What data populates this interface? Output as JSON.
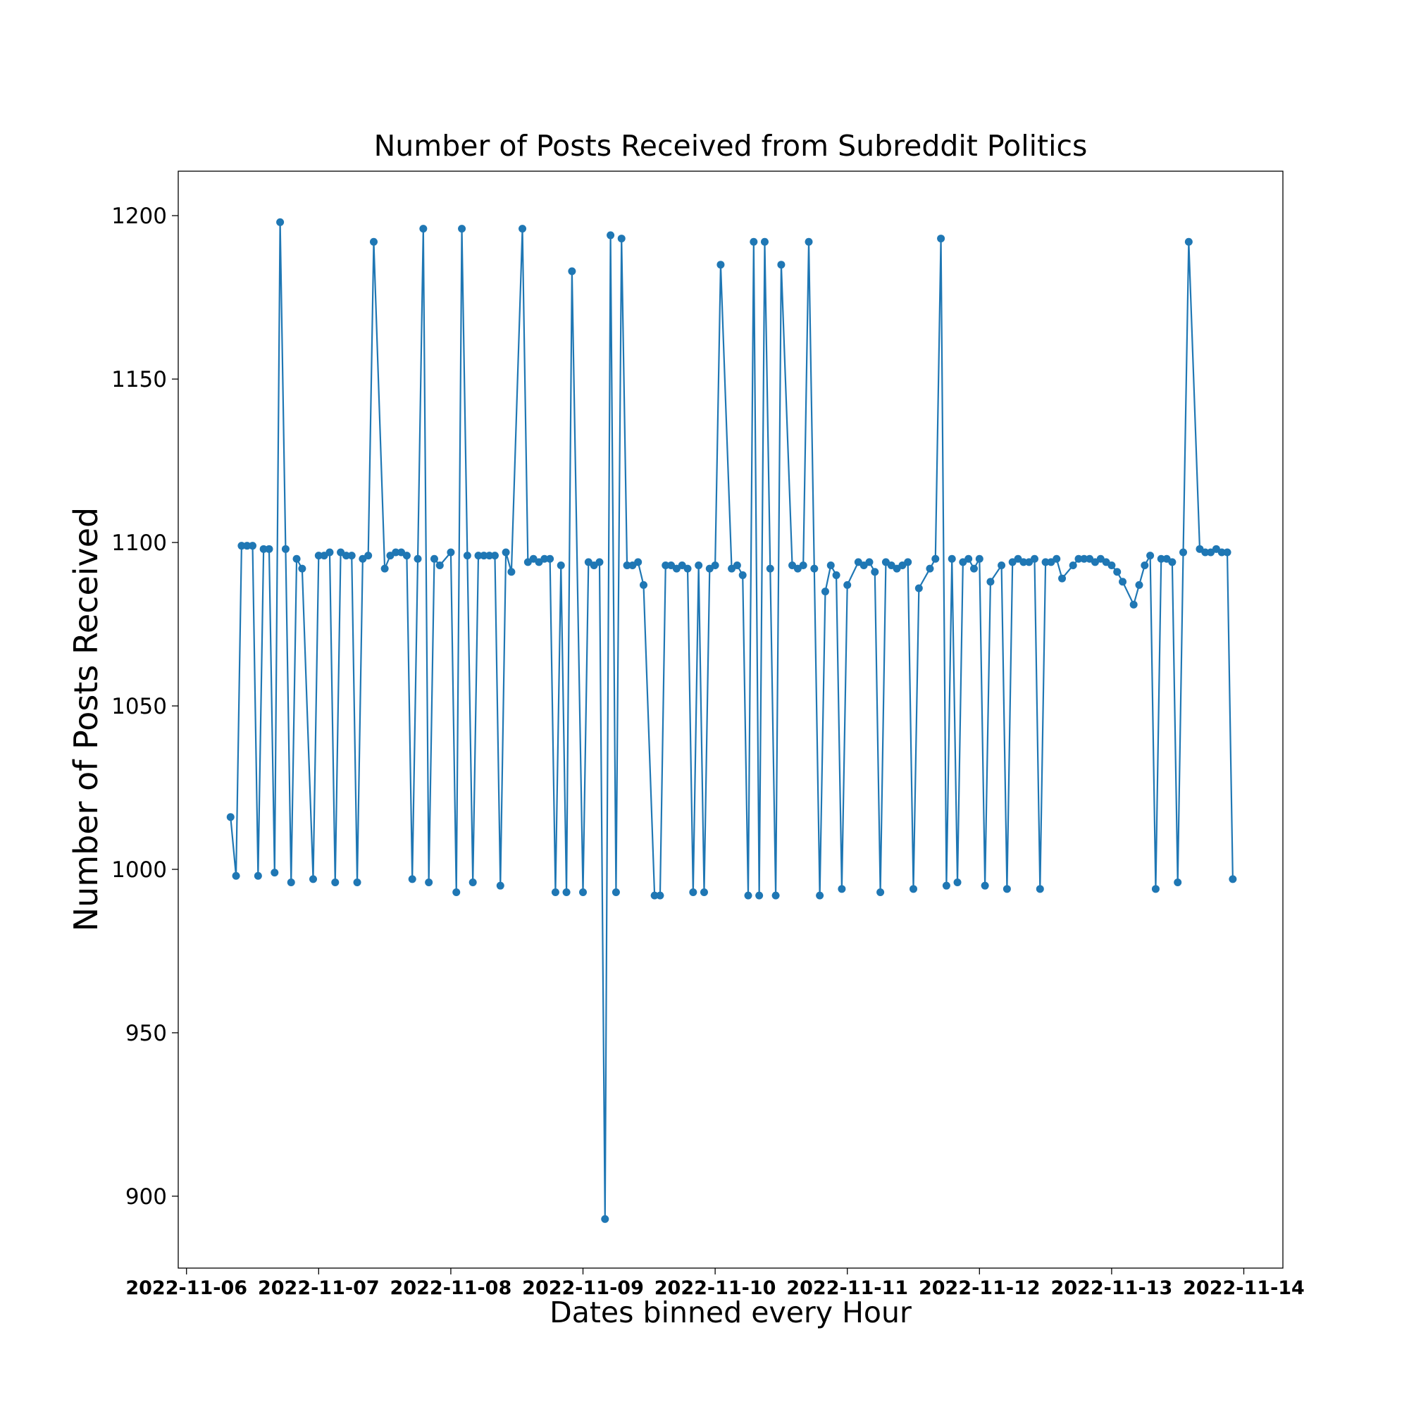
{
  "chart_data": {
    "type": "line",
    "title": "Number of Posts Received from Subreddit Politics",
    "xlabel": "Dates binned every Hour",
    "ylabel": "Number of Posts Received",
    "color": "#1f77b4",
    "x": [
      "2022-11-06 08:00",
      "2022-11-06 09:00",
      "2022-11-06 10:00",
      "2022-11-06 11:00",
      "2022-11-06 12:00",
      "2022-11-06 13:00",
      "2022-11-06 14:00",
      "2022-11-06 15:00",
      "2022-11-06 16:00",
      "2022-11-06 17:00",
      "2022-11-06 18:00",
      "2022-11-06 19:00",
      "2022-11-06 20:00",
      "2022-11-06 21:00",
      "2022-11-06 23:00",
      "2022-11-07 00:00",
      "2022-11-07 01:00",
      "2022-11-07 02:00",
      "2022-11-07 03:00",
      "2022-11-07 04:00",
      "2022-11-07 05:00",
      "2022-11-07 06:00",
      "2022-11-07 07:00",
      "2022-11-07 08:00",
      "2022-11-07 09:00",
      "2022-11-07 10:00",
      "2022-11-07 12:00",
      "2022-11-07 13:00",
      "2022-11-07 14:00",
      "2022-11-07 15:00",
      "2022-11-07 16:00",
      "2022-11-07 17:00",
      "2022-11-07 18:00",
      "2022-11-07 19:00",
      "2022-11-07 20:00",
      "2022-11-07 21:00",
      "2022-11-07 22:00",
      "2022-11-08 00:00",
      "2022-11-08 01:00",
      "2022-11-08 02:00",
      "2022-11-08 03:00",
      "2022-11-08 04:00",
      "2022-11-08 05:00",
      "2022-11-08 06:00",
      "2022-11-08 07:00",
      "2022-11-08 08:00",
      "2022-11-08 09:00",
      "2022-11-08 10:00",
      "2022-11-08 11:00",
      "2022-11-08 13:00",
      "2022-11-08 14:00",
      "2022-11-08 15:00",
      "2022-11-08 16:00",
      "2022-11-08 17:00",
      "2022-11-08 18:00",
      "2022-11-08 19:00",
      "2022-11-08 20:00",
      "2022-11-08 21:00",
      "2022-11-08 22:00",
      "2022-11-09 00:00",
      "2022-11-09 01:00",
      "2022-11-09 02:00",
      "2022-11-09 03:00",
      "2022-11-09 04:00",
      "2022-11-09 05:00",
      "2022-11-09 06:00",
      "2022-11-09 07:00",
      "2022-11-09 08:00",
      "2022-11-09 09:00",
      "2022-11-09 10:00",
      "2022-11-09 11:00",
      "2022-11-09 13:00",
      "2022-11-09 14:00",
      "2022-11-09 15:00",
      "2022-11-09 16:00",
      "2022-11-09 17:00",
      "2022-11-09 18:00",
      "2022-11-09 19:00",
      "2022-11-09 20:00",
      "2022-11-09 21:00",
      "2022-11-09 22:00",
      "2022-11-09 23:00",
      "2022-11-10 00:00",
      "2022-11-10 01:00",
      "2022-11-10 03:00",
      "2022-11-10 04:00",
      "2022-11-10 05:00",
      "2022-11-10 06:00",
      "2022-11-10 07:00",
      "2022-11-10 08:00",
      "2022-11-10 09:00",
      "2022-11-10 10:00",
      "2022-11-10 11:00",
      "2022-11-10 12:00",
      "2022-11-10 14:00",
      "2022-11-10 15:00",
      "2022-11-10 16:00",
      "2022-11-10 17:00",
      "2022-11-10 18:00",
      "2022-11-10 19:00",
      "2022-11-10 20:00",
      "2022-11-10 21:00",
      "2022-11-10 22:00",
      "2022-11-10 23:00",
      "2022-11-11 00:00",
      "2022-11-11 02:00",
      "2022-11-11 03:00",
      "2022-11-11 04:00",
      "2022-11-11 05:00",
      "2022-11-11 06:00",
      "2022-11-11 07:00",
      "2022-11-11 08:00",
      "2022-11-11 09:00",
      "2022-11-11 10:00",
      "2022-11-11 11:00",
      "2022-11-11 12:00",
      "2022-11-11 13:00",
      "2022-11-11 15:00",
      "2022-11-11 16:00",
      "2022-11-11 17:00",
      "2022-11-11 18:00",
      "2022-11-11 19:00",
      "2022-11-11 20:00",
      "2022-11-11 21:00",
      "2022-11-11 22:00",
      "2022-11-11 23:00",
      "2022-11-12 00:00",
      "2022-11-12 01:00",
      "2022-11-12 02:00",
      "2022-11-12 04:00",
      "2022-11-12 05:00",
      "2022-11-12 06:00",
      "2022-11-12 07:00",
      "2022-11-12 08:00",
      "2022-11-12 09:00",
      "2022-11-12 10:00",
      "2022-11-12 11:00",
      "2022-11-12 12:00",
      "2022-11-12 13:00",
      "2022-11-12 14:00",
      "2022-11-12 15:00",
      "2022-11-12 17:00",
      "2022-11-12 18:00",
      "2022-11-12 19:00",
      "2022-11-12 20:00",
      "2022-11-12 21:00",
      "2022-11-12 22:00",
      "2022-11-12 23:00",
      "2022-11-13 00:00",
      "2022-11-13 01:00",
      "2022-11-13 02:00",
      "2022-11-13 04:00",
      "2022-11-13 05:00",
      "2022-11-13 06:00",
      "2022-11-13 07:00",
      "2022-11-13 08:00",
      "2022-11-13 09:00",
      "2022-11-13 10:00",
      "2022-11-13 11:00",
      "2022-11-13 12:00",
      "2022-11-13 13:00",
      "2022-11-13 14:00",
      "2022-11-13 16:00",
      "2022-11-13 17:00",
      "2022-11-13 18:00",
      "2022-11-13 19:00",
      "2022-11-13 20:00",
      "2022-11-13 21:00",
      "2022-11-13 22:00"
    ],
    "values": [
      1016,
      998,
      1099,
      1099,
      1099,
      998,
      1098,
      1098,
      999,
      1198,
      1098,
      996,
      1095,
      1092,
      997,
      1096,
      1096,
      1097,
      996,
      1097,
      1096,
      1096,
      996,
      1095,
      1096,
      1192,
      1092,
      1096,
      1097,
      1097,
      1096,
      997,
      1095,
      1196,
      996,
      1095,
      1093,
      1097,
      993,
      1196,
      1096,
      996,
      1096,
      1096,
      1096,
      1096,
      995,
      1097,
      1091,
      1196,
      1094,
      1095,
      1094,
      1095,
      1095,
      993,
      1093,
      993,
      1183,
      993,
      1094,
      1093,
      1094,
      893,
      1194,
      993,
      1193,
      1093,
      1093,
      1094,
      1087,
      992,
      992,
      1093,
      1093,
      1092,
      1093,
      1092,
      993,
      1093,
      993,
      1092,
      1093,
      1185,
      1092,
      1093,
      1090,
      992,
      1192,
      992,
      1192,
      1092,
      992,
      1185,
      1093,
      1092,
      1093,
      1192,
      1092,
      992,
      1085,
      1093,
      1090,
      994,
      1087,
      1094,
      1093,
      1094,
      1091,
      993,
      1094,
      1093,
      1092,
      1093,
      1094,
      994,
      1086,
      1092,
      1095,
      1193,
      995,
      1095,
      996,
      1094,
      1095,
      1092,
      1095,
      995,
      1088,
      1093,
      994,
      1094,
      1095,
      1094,
      1094,
      1095,
      994,
      1094,
      1094,
      1095,
      1089,
      1093,
      1095,
      1095,
      1095,
      1094,
      1095,
      1094,
      1093,
      1091,
      1088,
      1081,
      1087,
      1093,
      1096,
      994,
      1095,
      1095,
      1094,
      996,
      1097,
      1192,
      1098,
      1097,
      1097,
      1098,
      1097,
      1097,
      997
    ],
    "xlim": [
      "2022-11-05 22:30",
      "2022-11-14 07:06"
    ],
    "xticks": [
      "2022-11-06",
      "2022-11-07",
      "2022-11-08",
      "2022-11-09",
      "2022-11-10",
      "2022-11-11",
      "2022-11-12",
      "2022-11-13",
      "2022-11-14"
    ],
    "ylim": [
      878,
      1213.6
    ],
    "yticks": [
      900,
      950,
      1000,
      1050,
      1100,
      1150,
      1200
    ],
    "grid": false
  }
}
